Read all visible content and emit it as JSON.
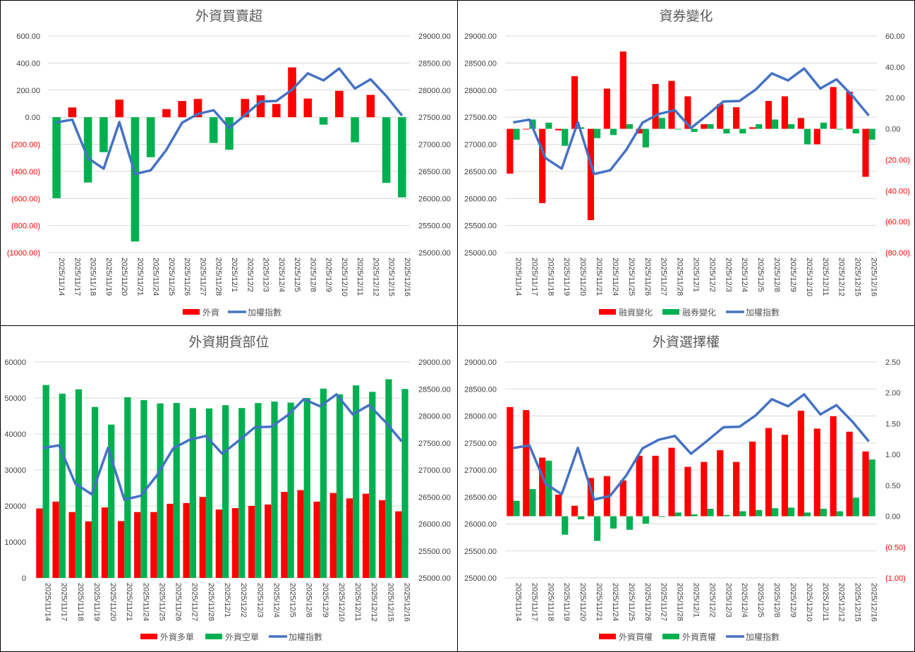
{
  "colors": {
    "red": "#ff0000",
    "green": "#00b050",
    "blue": "#4472c4",
    "grid": "#d9d9d9",
    "negative_tick": "#ff0000"
  },
  "dates": [
    "2025/11/14",
    "2025/11/17",
    "2025/11/18",
    "2025/11/19",
    "2025/11/20",
    "2025/11/21",
    "2025/11/24",
    "2025/11/25",
    "2025/11/26",
    "2025/11/27",
    "2025/11/28",
    "2025/12/1",
    "2025/12/2",
    "2025/12/3",
    "2025/12/4",
    "2025/12/5",
    "2025/12/8",
    "2025/12/9",
    "2025/12/10",
    "2025/12/11",
    "2025/12/12",
    "2025/12/15",
    "2025/12/16"
  ],
  "chart_data": [
    {
      "type": "bar",
      "title": "外資買賣超",
      "left_axis": {
        "ylim": [
          -1000,
          600
        ],
        "ticks": [
          "600.00",
          "400.00",
          "200.00",
          "0.00",
          "(200.00)",
          "(400.00)",
          "(600.00)",
          "(800.00)",
          "(1000.00)"
        ]
      },
      "right_axis": {
        "ylim": [
          25000,
          29000
        ],
        "ticks": [
          "29000.00",
          "28500.00",
          "28000.00",
          "27500.00",
          "27000.00",
          "26500.00",
          "26000.00",
          "25500.00",
          "25000.00"
        ]
      },
      "legend": [
        "外資",
        "加權指數"
      ],
      "series": [
        {
          "name": "外資",
          "type": "bar",
          "axis": "left",
          "color_rule": "red-positive-green-negative",
          "values": [
            -598,
            72,
            -482,
            -258,
            130,
            -918,
            -295,
            60,
            120,
            135,
            -190,
            -240,
            135,
            162,
            98,
            368,
            138,
            -55,
            195,
            -185,
            165,
            -485,
            -592
          ]
        },
        {
          "name": "加權指數",
          "type": "line",
          "axis": "right",
          "values": [
            27405,
            27455,
            26745,
            26550,
            27410,
            26450,
            26520,
            26900,
            27400,
            27560,
            27630,
            27300,
            27540,
            27790,
            27800,
            28010,
            28310,
            28180,
            28400,
            28030,
            28200,
            27890,
            27530
          ]
        }
      ]
    },
    {
      "type": "bar",
      "title": "資券變化",
      "left_axis": {
        "ylim": [
          25000,
          29000
        ],
        "ticks": [
          "29000.00",
          "28500.00",
          "28000.00",
          "27500.00",
          "27000.00",
          "26500.00",
          "26000.00",
          "25500.00",
          "25000.00"
        ]
      },
      "right_axis": {
        "ylim": [
          -80,
          60
        ],
        "ticks": [
          "60.00",
          "40.00",
          "20.00",
          "0.00",
          "(20.00)",
          "(40.00)",
          "(60.00)",
          "(80.00)"
        ]
      },
      "legend": [
        "融資變化",
        "融券變化",
        "加權指數"
      ],
      "series": [
        {
          "name": "融資變化",
          "type": "bar",
          "axis": "right",
          "color": "red",
          "values": [
            -29,
            0,
            -48,
            -1,
            34,
            -59,
            26,
            50,
            -3,
            29,
            31,
            21,
            3,
            16,
            14,
            1,
            18,
            21,
            7,
            -10,
            27,
            24,
            -31
          ]
        },
        {
          "name": "融券變化",
          "type": "bar",
          "axis": "right",
          "color": "green",
          "values": [
            -7,
            6,
            4,
            -11,
            1,
            -6,
            -4,
            3,
            -12,
            7,
            0,
            -2,
            3,
            -3,
            -3,
            3,
            6,
            3,
            -10,
            4,
            0,
            -3,
            -7
          ]
        },
        {
          "name": "加權指數",
          "type": "line",
          "axis": "left",
          "values": [
            27405,
            27455,
            26745,
            26550,
            27410,
            26450,
            26520,
            26900,
            27400,
            27560,
            27630,
            27300,
            27540,
            27790,
            27800,
            28010,
            28310,
            28180,
            28400,
            28030,
            28200,
            27890,
            27530
          ]
        }
      ]
    },
    {
      "type": "bar",
      "title": "外資期貨部位",
      "left_axis": {
        "ylim": [
          0,
          60000
        ],
        "ticks": [
          "60000",
          "50000",
          "40000",
          "30000",
          "20000",
          "10000",
          "0"
        ]
      },
      "right_axis": {
        "ylim": [
          25000,
          29000
        ],
        "ticks": [
          "29000.00",
          "28500.00",
          "28000.00",
          "27500.00",
          "27000.00",
          "26500.00",
          "26000.00",
          "25500.00",
          "25000.00"
        ]
      },
      "legend": [
        "外資多單",
        "外資空單",
        "加權指數"
      ],
      "series": [
        {
          "name": "外資多單",
          "type": "bar",
          "axis": "left",
          "color": "red",
          "values": [
            19300,
            21200,
            18300,
            15700,
            19600,
            15800,
            18300,
            18300,
            20600,
            20800,
            22500,
            19000,
            19400,
            20000,
            20400,
            23900,
            24400,
            21200,
            23600,
            22100,
            23400,
            21600,
            18500
          ]
        },
        {
          "name": "外資空單",
          "type": "bar",
          "axis": "left",
          "color": "green",
          "values": [
            53600,
            51200,
            52400,
            47500,
            42600,
            50200,
            49400,
            48500,
            48600,
            47200,
            47100,
            48000,
            47200,
            48600,
            49000,
            48700,
            50000,
            52600,
            51000,
            53500,
            51700,
            55200,
            52500
          ]
        },
        {
          "name": "加權指數",
          "type": "line",
          "axis": "right",
          "values": [
            27405,
            27455,
            26745,
            26550,
            27410,
            26450,
            26520,
            26900,
            27400,
            27560,
            27630,
            27300,
            27540,
            27790,
            27800,
            28010,
            28310,
            28180,
            28400,
            28030,
            28200,
            27890,
            27530
          ]
        }
      ]
    },
    {
      "type": "bar",
      "title": "外資選擇權",
      "left_axis": {
        "ylim": [
          25000,
          29000
        ],
        "ticks": [
          "29000.00",
          "28500.00",
          "28000.00",
          "27500.00",
          "27000.00",
          "26500.00",
          "26000.00",
          "25500.00",
          "25000.00"
        ]
      },
      "right_axis": {
        "ylim": [
          -1,
          2.5
        ],
        "ticks": [
          "2.50",
          "2.00",
          "1.50",
          "1.00",
          "0.50",
          "0.00",
          "(0.50)",
          "(1.00)"
        ]
      },
      "legend": [
        "外資買權",
        "外資賣權",
        "加權指數"
      ],
      "series": [
        {
          "name": "外資買權",
          "type": "bar",
          "axis": "right",
          "color": "red",
          "values": [
            1.77,
            1.72,
            0.95,
            0.35,
            0.17,
            0.62,
            0.65,
            0.58,
            0.98,
            0.98,
            1.11,
            0.8,
            0.88,
            1.07,
            0.88,
            1.21,
            1.43,
            1.32,
            1.71,
            1.42,
            1.62,
            1.37,
            1.05
          ]
        },
        {
          "name": "外資賣權",
          "type": "bar",
          "axis": "right",
          "color": "green",
          "values": [
            0.25,
            0.44,
            0.9,
            -0.3,
            -0.05,
            -0.4,
            -0.2,
            -0.22,
            -0.12,
            0.0,
            0.06,
            0.03,
            0.12,
            0.02,
            0.08,
            0.1,
            0.13,
            0.14,
            0.06,
            0.12,
            0.08,
            0.3,
            0.92
          ]
        },
        {
          "name": "加權指數",
          "type": "line",
          "axis": "left",
          "values": [
            27405,
            27455,
            26745,
            26550,
            27410,
            26450,
            26520,
            26900,
            27400,
            27560,
            27630,
            27300,
            27540,
            27790,
            27800,
            28010,
            28310,
            28180,
            28400,
            28030,
            28200,
            27890,
            27530
          ]
        }
      ]
    }
  ]
}
